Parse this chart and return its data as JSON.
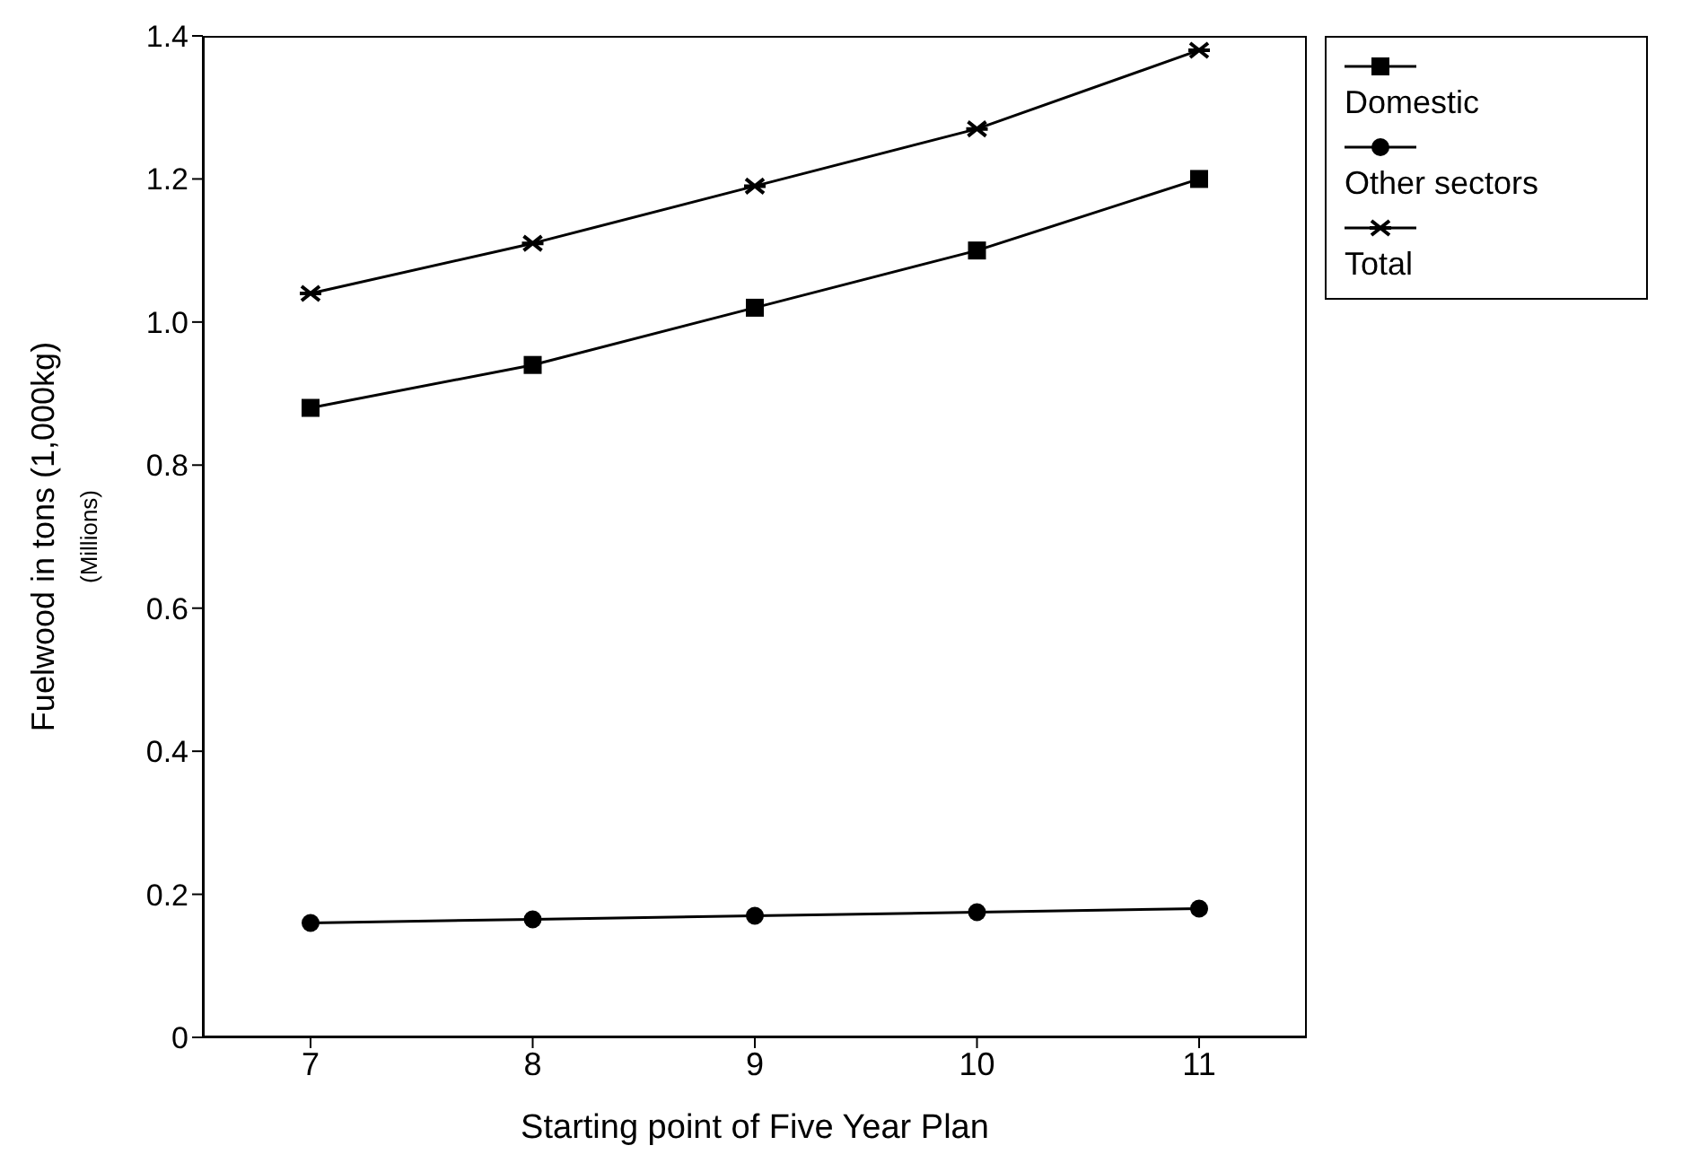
{
  "chart_data": {
    "type": "line",
    "xlabel": "Starting point of Five Year Plan",
    "ylabel": "Fuelwood in tons (1,000kg)$_{(Millions)}$",
    "categories": [
      "7",
      "8",
      "9",
      "10",
      "11"
    ],
    "series": [
      {
        "name": "Domestic",
        "color": "#000000",
        "marker": "square",
        "values": [
          0.88,
          0.94,
          1.02,
          1.1,
          1.2
        ]
      },
      {
        "name": "Other sectors",
        "color": "#000000",
        "marker": "circle",
        "values": [
          0.16,
          0.165,
          0.17,
          0.175,
          0.18
        ]
      },
      {
        "name": "Total",
        "color": "#000000",
        "marker": "cross",
        "values": [
          1.04,
          1.11,
          1.19,
          1.27,
          1.38
        ]
      }
    ],
    "ylim": [
      0,
      1.4
    ],
    "yticks": [
      0,
      0.2,
      0.4,
      0.6,
      0.8,
      {
        "value": 1,
        "label": "1.0"
      },
      1.2,
      1.4
    ],
    "grid": false,
    "legend": "top right",
    "line_style": "solid"
  }
}
